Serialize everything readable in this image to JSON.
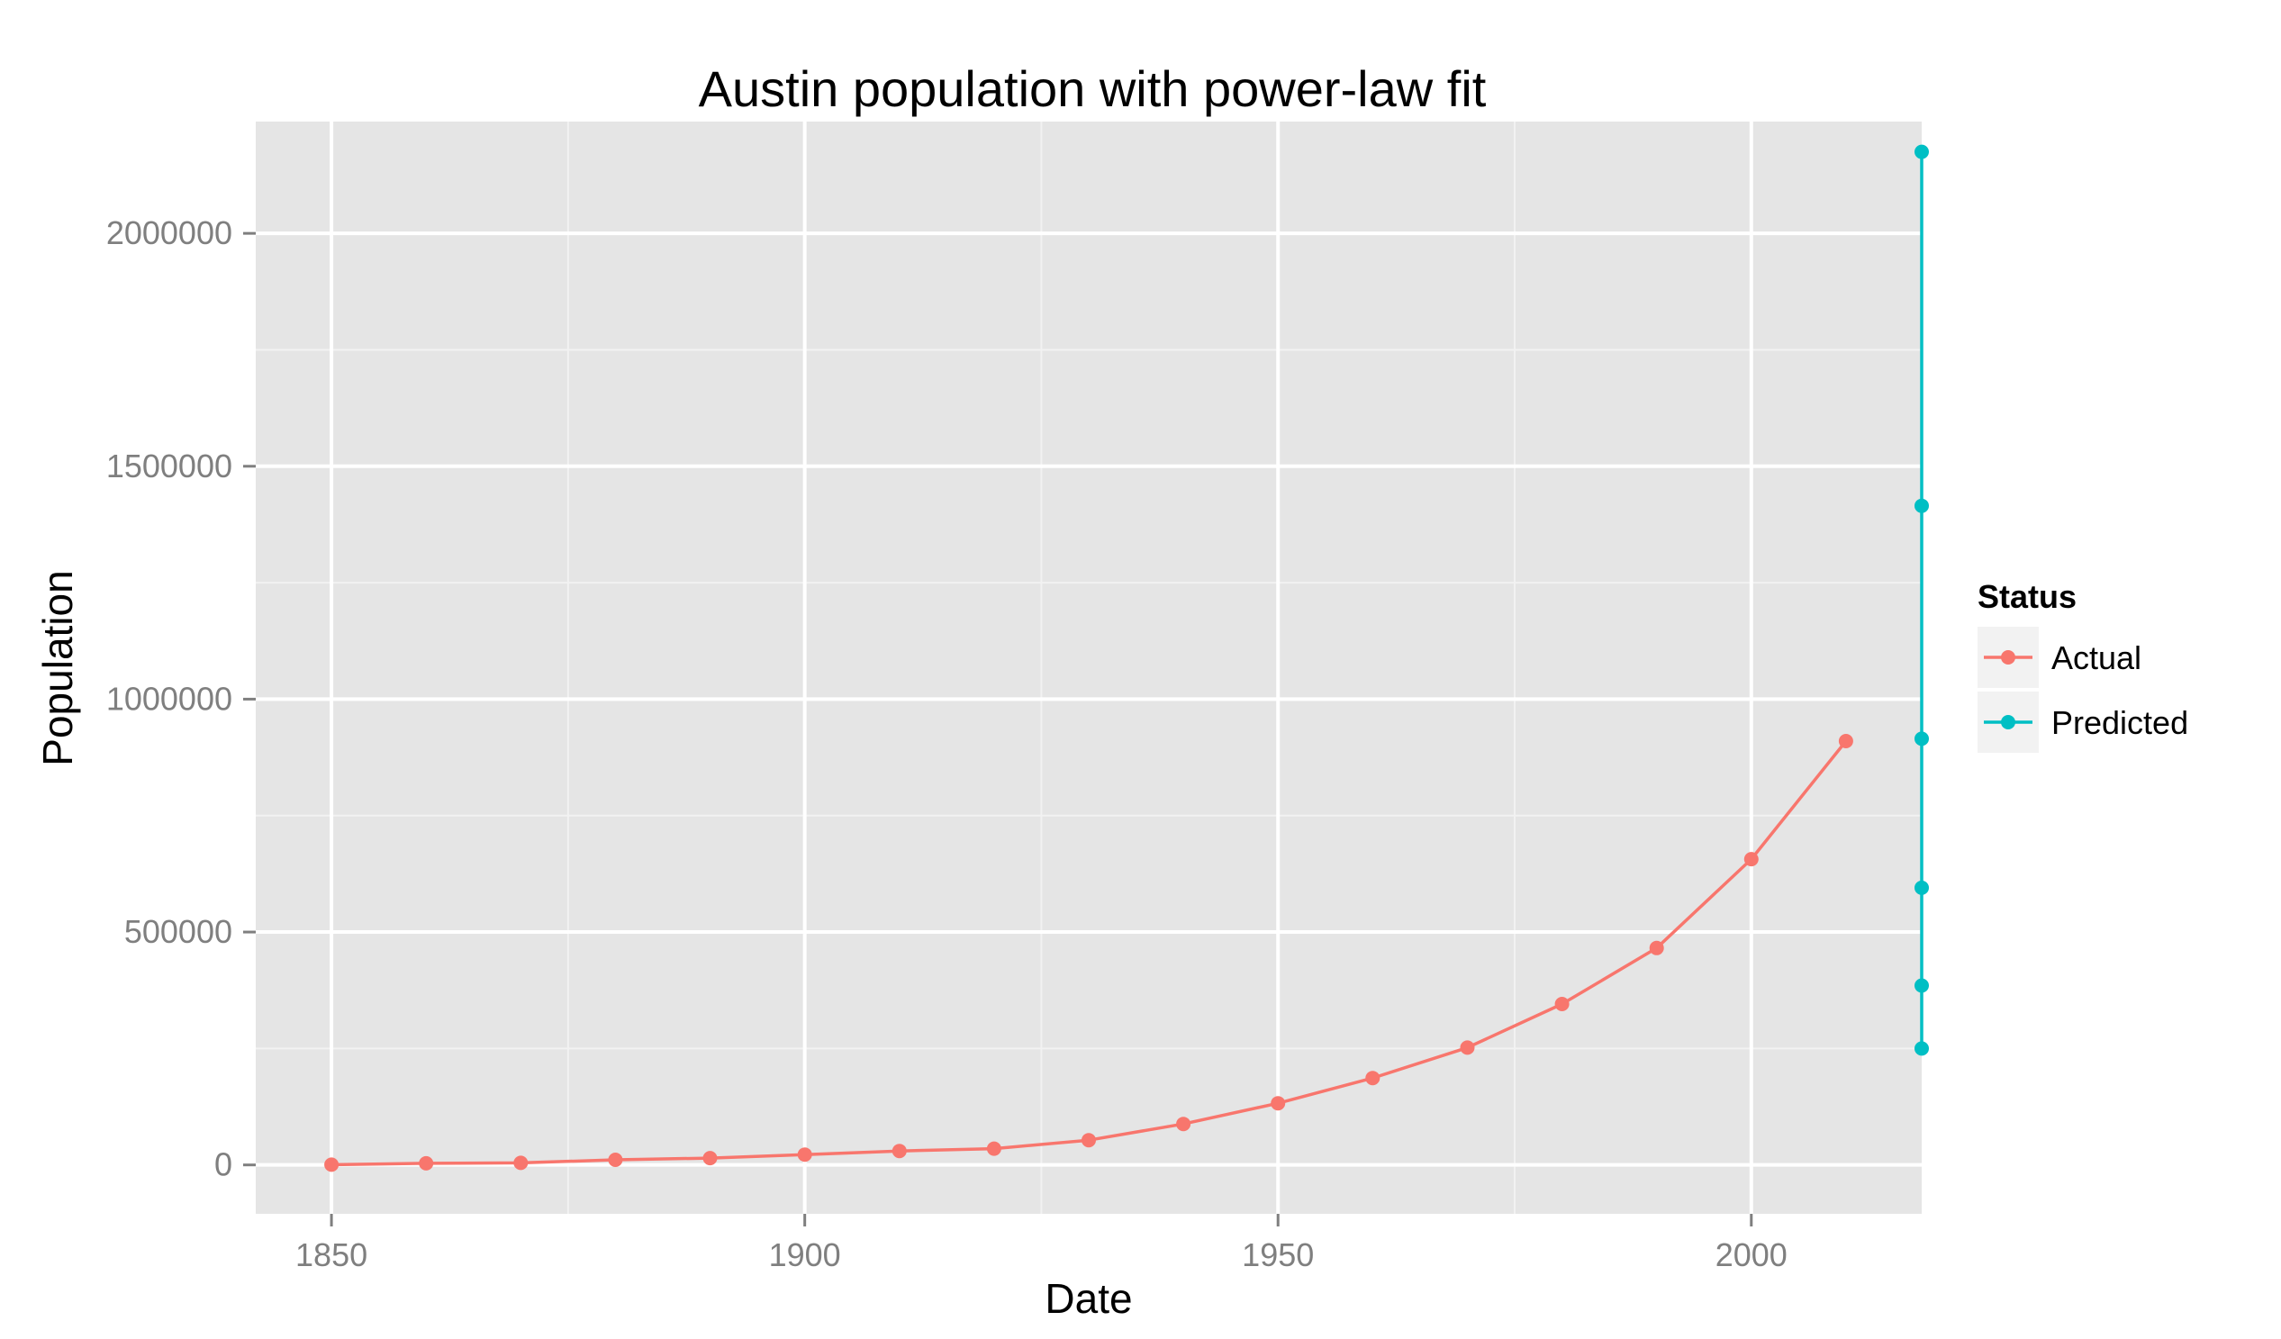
{
  "chart_data": {
    "type": "line",
    "title": "Austin population with power-law fit",
    "xlabel": "Date",
    "ylabel": "Population",
    "xlim": [
      1842,
      2018
    ],
    "ylim": [
      -105000,
      2240000
    ],
    "x_ticks": [
      1850,
      1900,
      1950,
      2000
    ],
    "x_tick_labels": [
      "1850",
      "1900",
      "1950",
      "2000"
    ],
    "y_ticks": [
      0,
      500000,
      1000000,
      1500000,
      2000000
    ],
    "y_tick_labels": [
      "0",
      "500000",
      "1000000",
      "1500000",
      "2000000"
    ],
    "grid": true,
    "legend": {
      "title": "Status",
      "placement": "right"
    },
    "series": [
      {
        "name": "Actual",
        "color": "#F8766D",
        "x": [
          1850,
          1860,
          1870,
          1880,
          1890,
          1900,
          1910,
          1920,
          1930,
          1940,
          1950,
          1960,
          1970,
          1980,
          1990,
          2000,
          2010
        ],
        "y": [
          629,
          3494,
          4428,
          11013,
          14575,
          22258,
          29860,
          34876,
          53120,
          87930,
          132459,
          186545,
          251808,
          345496,
          465622,
          656562,
          910000
        ]
      },
      {
        "name": "Predicted",
        "color": "#00BFC4",
        "x": [
          2018,
          2018,
          2018,
          2018,
          2018,
          2018
        ],
        "y": [
          250000,
          385000,
          595000,
          915000,
          1415000,
          2175000
        ]
      }
    ]
  }
}
